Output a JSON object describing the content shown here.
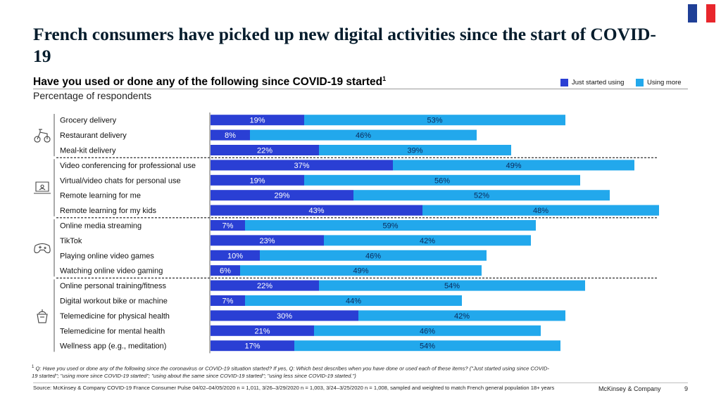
{
  "title": "French consumers have picked up new digital activities since the start of COVID-19",
  "subtitle": "Have you used or done any of the following since COVID-19 started",
  "subtitle_footnote_mark": "1",
  "unit_label": "Percentage of respondents",
  "flag_colors": [
    "#1f3f96",
    "#ffffff",
    "#e8262c"
  ],
  "colors": {
    "just_started": "#2a3fd4",
    "using_more": "#22a8ec",
    "separator": "#000000",
    "title": "#051c2c"
  },
  "legend": [
    {
      "label": "Just started using",
      "color": "#2a3fd4"
    },
    {
      "label": "Using more",
      "color": "#22a8ec"
    }
  ],
  "category_icons": [
    "delivery-scooter-icon",
    "laptop-icon",
    "gamepad-icon",
    "fitness-kettlebell-icon"
  ],
  "chart_data": {
    "type": "bar",
    "orientation": "horizontal",
    "stacked": true,
    "categories": [
      "Grocery delivery",
      "Restaurant delivery",
      "Meal-kit delivery",
      "Video conferencing for professional use",
      "Virtual/video chats for personal use",
      "Remote learning for me",
      "Remote learning for my kids",
      "Online media streaming",
      "TikTok",
      "Playing online video games",
      "Watching online video gaming",
      "Online personal training/fitness",
      "Digital workout bike or machine",
      "Telemedicine for physical health",
      "Telemedicine for mental health",
      "Wellness app (e.g., meditation)"
    ],
    "groups": [
      {
        "icon": "delivery-scooter-icon",
        "start": 0,
        "count": 3
      },
      {
        "icon": "laptop-icon",
        "start": 3,
        "count": 4
      },
      {
        "icon": "gamepad-icon",
        "start": 7,
        "count": 4
      },
      {
        "icon": "fitness-kettlebell-icon",
        "start": 11,
        "count": 5
      }
    ],
    "series": [
      {
        "name": "Just started using",
        "values": [
          19,
          8,
          22,
          37,
          19,
          29,
          43,
          7,
          23,
          10,
          6,
          22,
          7,
          30,
          21,
          17
        ]
      },
      {
        "name": "Using more",
        "values": [
          53,
          46,
          39,
          49,
          56,
          52,
          48,
          59,
          42,
          46,
          49,
          54,
          44,
          42,
          46,
          54
        ]
      }
    ],
    "xlim": [
      0,
      92
    ],
    "value_suffix": "%"
  },
  "footnote_mark": "1",
  "footnote": "Q: Have you used or done any of the following since the coronavirus or COVID-19 situation started? If yes, Q: Which best describes when you have done or used each of these items? (\"Just started using since COVID-19 started\"; \"using more since COVID-19 started\"; \"using about the same since COVID-19 started\"; \"using less since COVID-19 started.\")",
  "source": "Source: McKinsey & Company COVID-19 France Consumer Pulse 04/02–04/05/2020 n = 1,011, 3/26–3/29/2020 n = 1,003, 3/24–3/25/2020 n = 1,008, sampled and weighted to match French general population 18+ years",
  "brand": "McKinsey & Company",
  "page_number": "9"
}
